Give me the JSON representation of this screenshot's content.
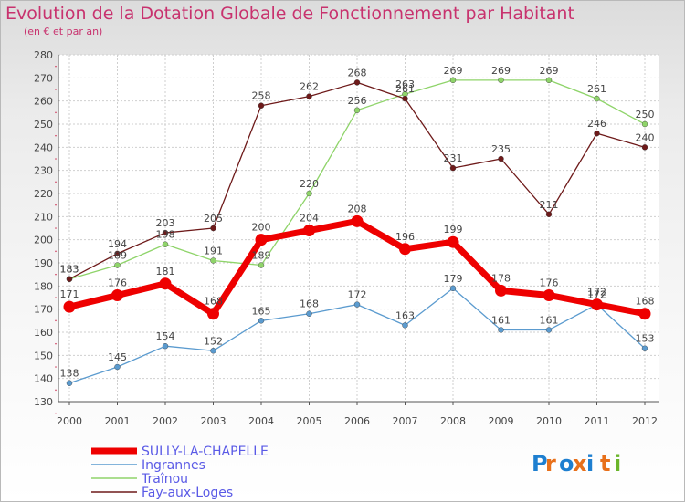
{
  "title": "Evolution de la Dotation Globale de Fonctionnement par Habitant",
  "subtitle": "(en € et par an)",
  "logo_text": "Proxiti",
  "colors": {
    "title": "#c8326e",
    "legend_text": "#5a5ae6",
    "grid": "#cfcfcf",
    "axis": "#555555"
  },
  "chart_data": {
    "type": "line",
    "title": "Evolution de la Dotation Globale de Fonctionnement par Habitant",
    "subtitle": "(en € et par an)",
    "categories": [
      "2000",
      "2001",
      "2002",
      "2003",
      "2004",
      "2005",
      "2006",
      "2007",
      "2008",
      "2009",
      "2010",
      "2011",
      "2012"
    ],
    "ylim": [
      130,
      280
    ],
    "yticks": [
      130,
      140,
      150,
      160,
      170,
      180,
      190,
      200,
      210,
      220,
      230,
      240,
      250,
      260,
      270,
      280
    ],
    "grid": true,
    "legend_placement": "bottom-left",
    "series": [
      {
        "name": "SULLY-LA-CHAPELLE",
        "color": "#ee0000",
        "thick": true,
        "values": [
          171,
          176,
          181,
          168,
          200,
          204,
          208,
          196,
          199,
          178,
          176,
          172,
          168
        ]
      },
      {
        "name": "Ingrannes",
        "color": "#5b9bcf",
        "thick": false,
        "values": [
          138,
          145,
          154,
          152,
          165,
          168,
          172,
          163,
          179,
          161,
          161,
          172,
          153
        ]
      },
      {
        "name": "Traînou",
        "color": "#8fd46a",
        "thick": false,
        "values": [
          183,
          189,
          198,
          191,
          189,
          220,
          256,
          263,
          269,
          269,
          269,
          261,
          250
        ]
      },
      {
        "name": "Fay-aux-Loges",
        "color": "#6e1a1a",
        "thick": false,
        "values": [
          183,
          194,
          203,
          205,
          258,
          262,
          268,
          261,
          231,
          235,
          211,
          246,
          240
        ]
      }
    ]
  }
}
